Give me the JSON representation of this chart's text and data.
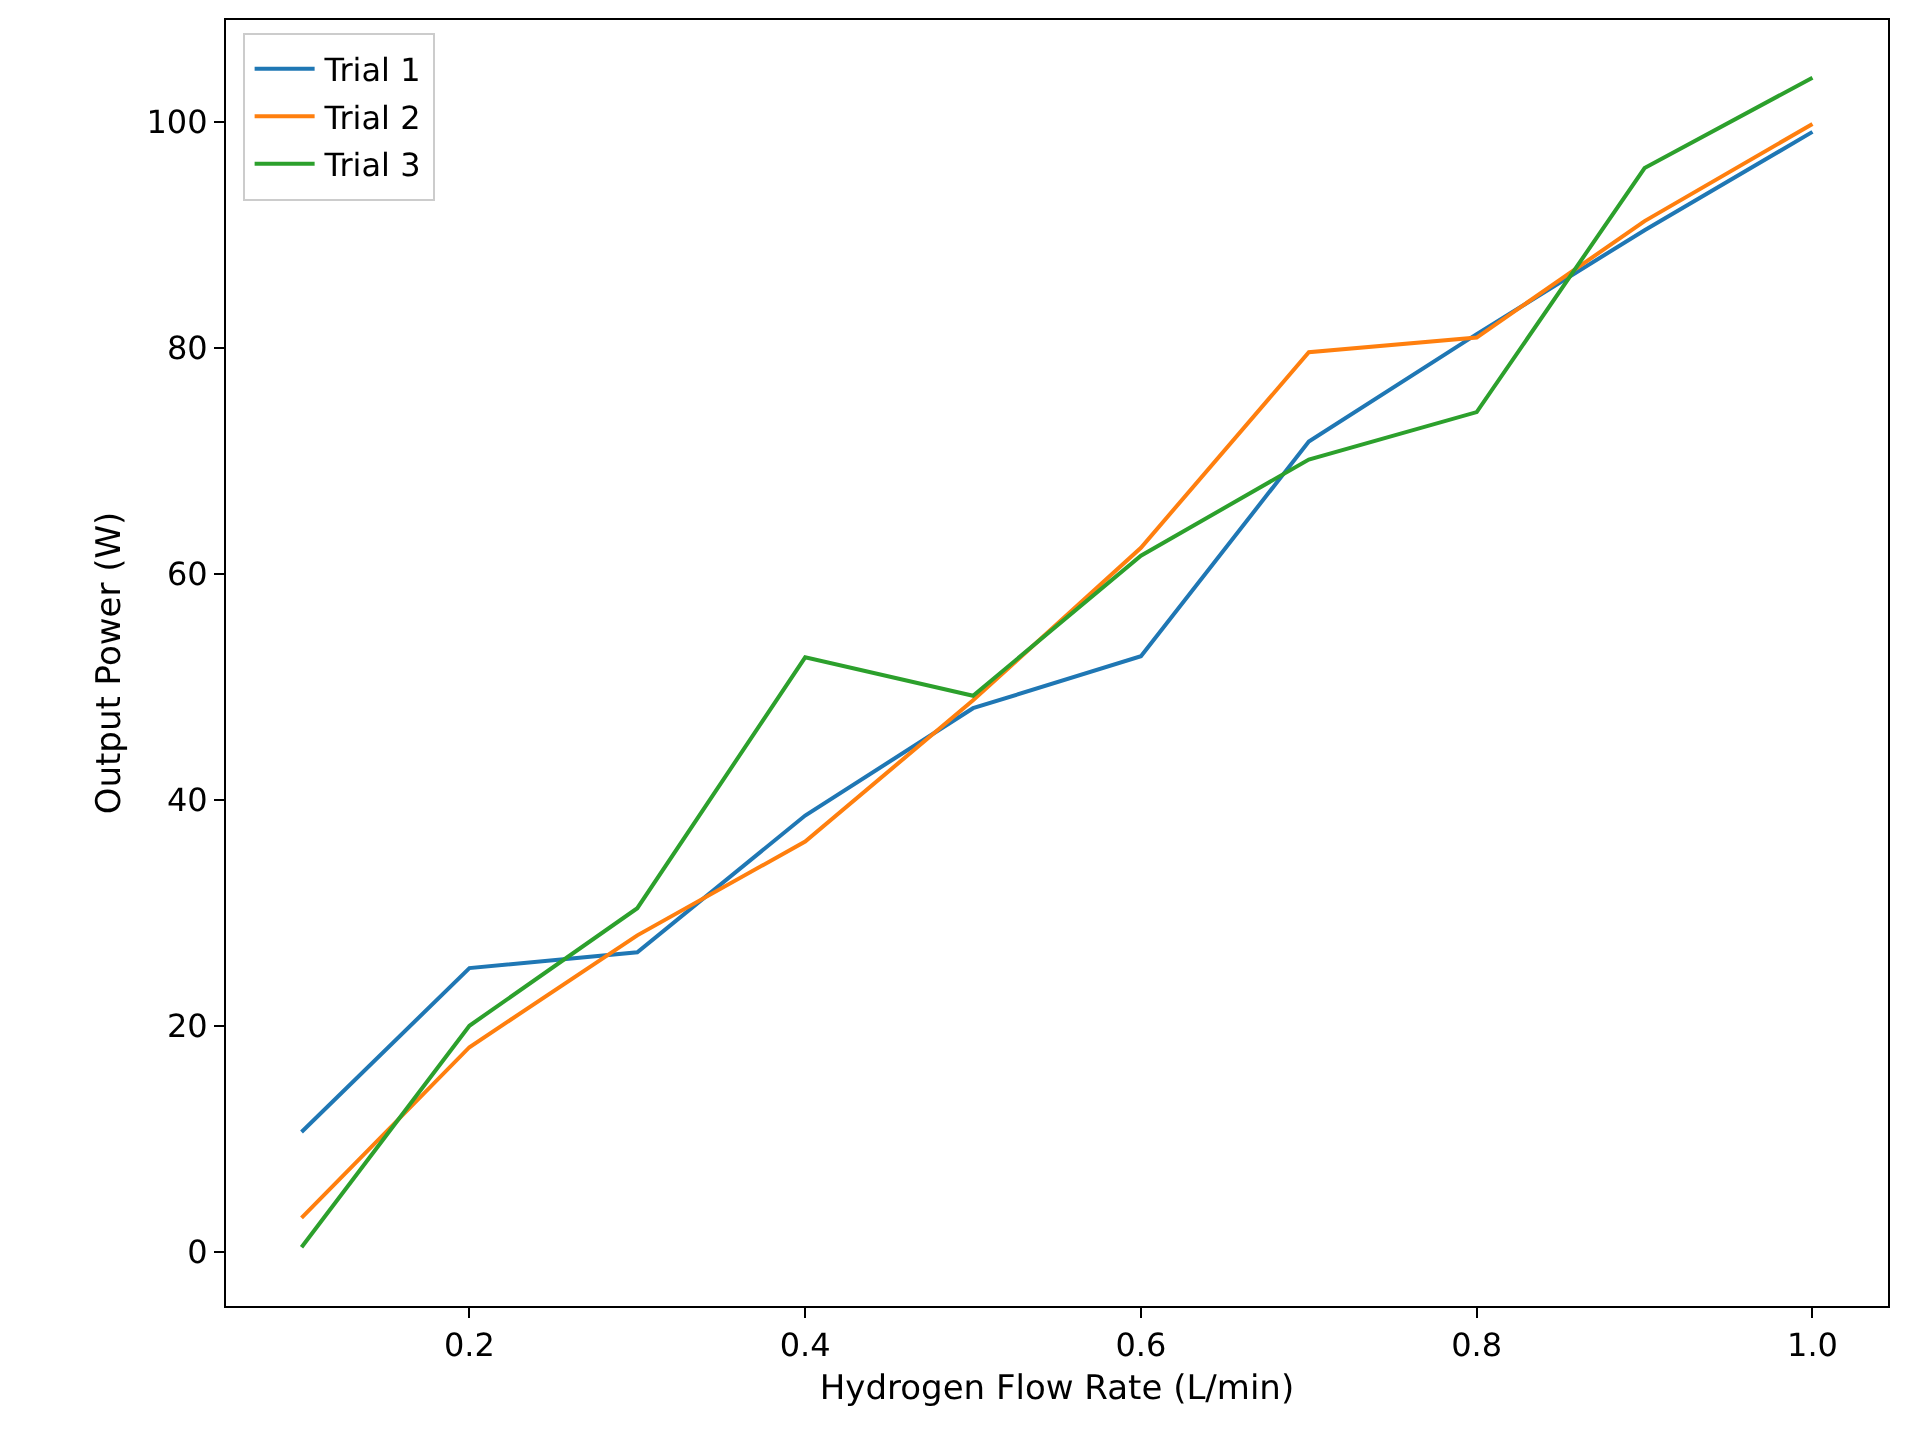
{
  "chart_data": {
    "type": "line",
    "xlabel": "Hydrogen Flow Rate (L/min)",
    "ylabel": "Output Power (W)",
    "x": [
      0.1,
      0.2,
      0.3,
      0.4,
      0.5,
      0.6,
      0.7,
      0.8,
      0.9,
      1.0
    ],
    "series": [
      {
        "name": "Trial 1",
        "color": "#1f77b4",
        "values": [
          10.6,
          25.1,
          26.5,
          38.6,
          48.1,
          52.7,
          71.7,
          81.2,
          90.4,
          99.1
        ]
      },
      {
        "name": "Trial 2",
        "color": "#ff7f0e",
        "values": [
          3.0,
          18.1,
          28.0,
          36.3,
          48.8,
          62.3,
          79.6,
          80.9,
          91.2,
          99.8
        ]
      },
      {
        "name": "Trial 3",
        "color": "#2ca02c",
        "values": [
          0.4,
          20.0,
          30.4,
          52.6,
          49.2,
          61.6,
          70.1,
          74.3,
          95.9,
          103.9
        ]
      }
    ],
    "xlim": [
      0.055,
      1.045
    ],
    "ylim": [
      -4.8,
      109.0
    ],
    "xticks": [
      {
        "value": 0.2,
        "label": "0.2"
      },
      {
        "value": 0.4,
        "label": "0.4"
      },
      {
        "value": 0.6,
        "label": "0.6"
      },
      {
        "value": 0.8,
        "label": "0.8"
      },
      {
        "value": 1.0,
        "label": "1.0"
      }
    ],
    "yticks": [
      0,
      20,
      40,
      60,
      80,
      100
    ],
    "legend": "top left",
    "marker": "none",
    "line_style": "solid"
  }
}
